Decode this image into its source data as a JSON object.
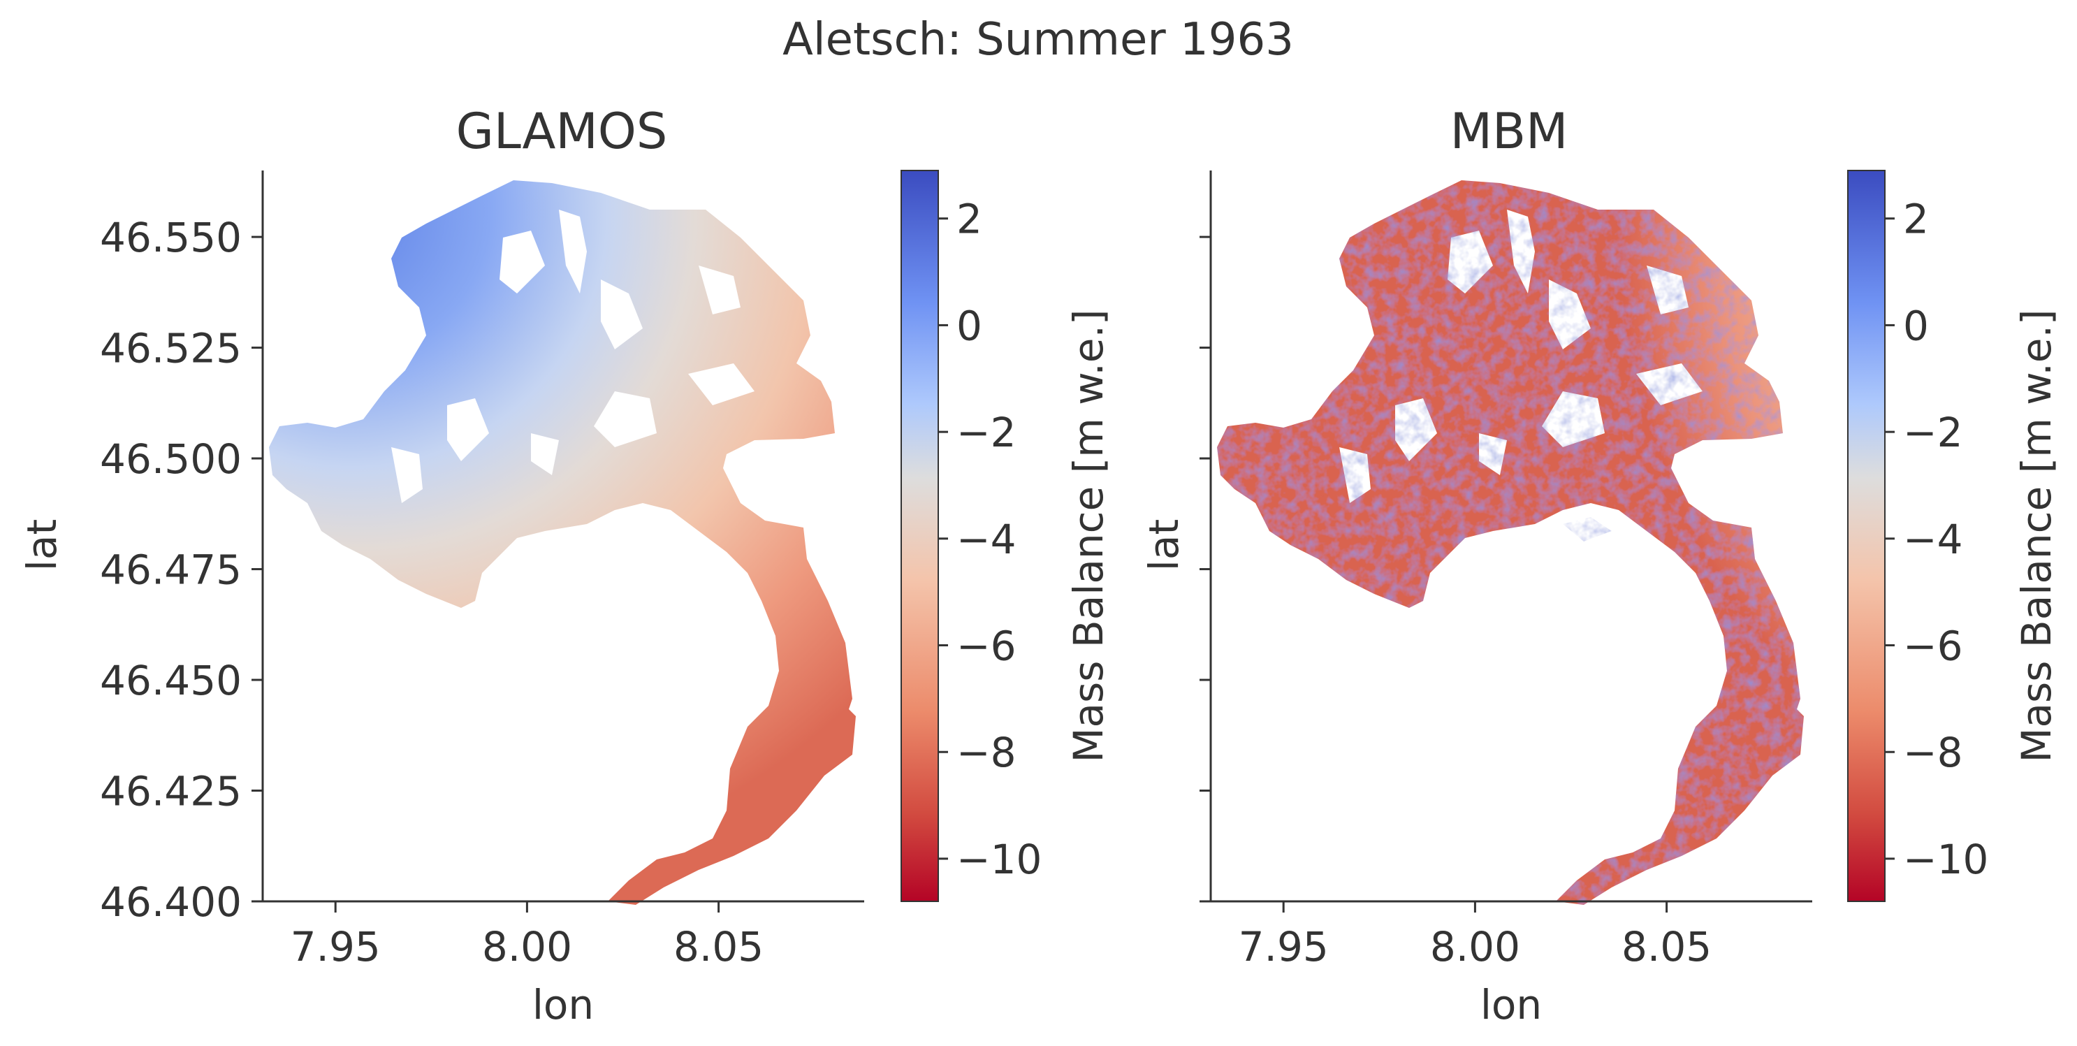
{
  "figure": {
    "suptitle": "Aletsch: Summer 1963"
  },
  "colorbar": {
    "label": "Mass Balance [m w.e.]",
    "cmap": "coolwarm_r",
    "vmin": -10.8,
    "vmax": 2.9,
    "ticks": [
      2,
      0,
      -2,
      -4,
      -6,
      -8,
      -10
    ],
    "tick_labels": [
      "2",
      "0",
      "−2",
      "−4",
      "−6",
      "−8",
      "−10"
    ],
    "colors": {
      "high": "#3b4cc0",
      "mid": "#dddddd",
      "low": "#b40426"
    }
  },
  "chart_data": [
    {
      "type": "heatmap",
      "title": "GLAMOS",
      "xlabel": "lon",
      "ylabel": "lat",
      "xlim": [
        7.931,
        8.088
      ],
      "ylim": [
        46.4,
        46.565
      ],
      "xticks": [
        7.95,
        8.0,
        8.05
      ],
      "xtick_labels": [
        "7.95",
        "8.00",
        "8.05"
      ],
      "yticks": [
        46.4,
        46.425,
        46.45,
        46.475,
        46.5,
        46.525,
        46.55
      ],
      "ytick_labels": [
        "46.400",
        "46.425",
        "46.450",
        "46.475",
        "46.500",
        "46.525",
        "46.550"
      ],
      "show_ytick_labels": true,
      "grid": false,
      "value_range": [
        -10.8,
        2.9
      ],
      "pattern": "smooth elevation gradient"
    },
    {
      "type": "heatmap",
      "title": "MBM",
      "xlabel": "lon",
      "ylabel": "lat",
      "xlim": [
        7.931,
        8.088
      ],
      "ylim": [
        46.4,
        46.565
      ],
      "xticks": [
        7.95,
        8.0,
        8.05
      ],
      "xtick_labels": [
        "7.95",
        "8.00",
        "8.05"
      ],
      "yticks": [
        46.4,
        46.425,
        46.45,
        46.475,
        46.5,
        46.525,
        46.55
      ],
      "ytick_labels": [],
      "show_ytick_labels": false,
      "grid": false,
      "value_range": [
        -10.8,
        2.9
      ],
      "pattern": "noisy modelled field"
    }
  ]
}
